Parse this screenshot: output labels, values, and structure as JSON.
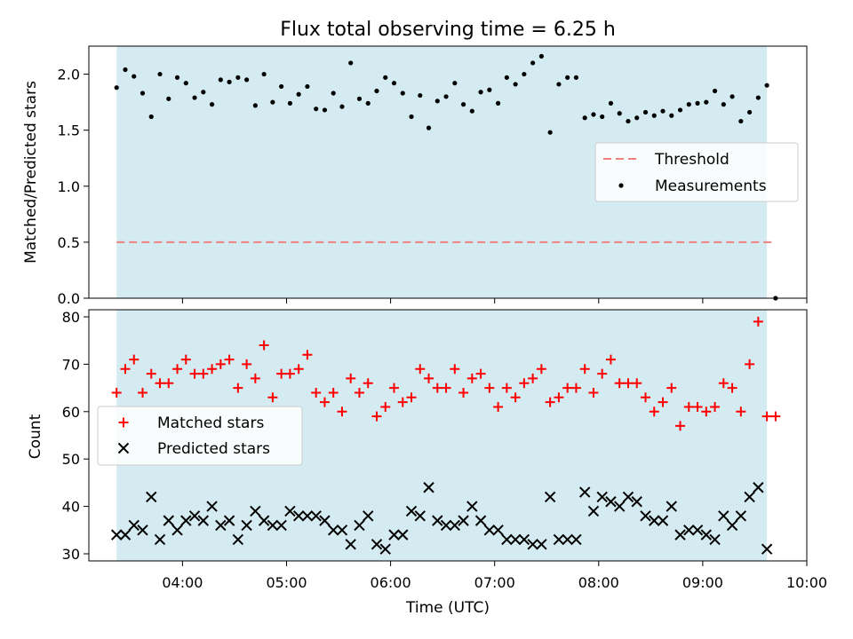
{
  "chart_data": {
    "title": "Flux total observing time = 6.25 h",
    "xlabel": "Time (UTC)",
    "x_ticks": [
      "04:00",
      "05:00",
      "06:00",
      "07:00",
      "08:00",
      "09:00",
      "10:00"
    ],
    "xlim": [
      "03:06",
      "10:00"
    ],
    "shaded_interval": [
      "03:22",
      "09:37"
    ],
    "shade_color": "#d4ebf2",
    "panels": [
      {
        "type": "scatter",
        "ylabel": "Matched/Predicted stars",
        "ylim": [
          0,
          2.25
        ],
        "yticks": [
          "0.0",
          "0.5",
          "1.0",
          "1.5",
          "2.0"
        ],
        "legend_position": "center-right",
        "threshold": {
          "name": "Threshold",
          "y": 0.5,
          "x_start": "03:22",
          "x_end": "09:42",
          "color": "#f08080"
        },
        "series": [
          {
            "name": "Measurements",
            "color": "#000000",
            "x": [
              "03:22",
              "03:27",
              "03:32",
              "03:37",
              "03:42",
              "03:47",
              "03:52",
              "03:57",
              "04:02",
              "04:07",
              "04:12",
              "04:17",
              "04:22",
              "04:27",
              "04:32",
              "04:37",
              "04:42",
              "04:47",
              "04:52",
              "04:57",
              "05:02",
              "05:07",
              "05:12",
              "05:17",
              "05:22",
              "05:27",
              "05:32",
              "05:37",
              "05:42",
              "05:47",
              "05:52",
              "05:57",
              "06:02",
              "06:07",
              "06:12",
              "06:17",
              "06:22",
              "06:27",
              "06:32",
              "06:37",
              "06:42",
              "06:47",
              "06:52",
              "06:57",
              "07:02",
              "07:07",
              "07:12",
              "07:17",
              "07:22",
              "07:27",
              "07:32",
              "07:37",
              "07:42",
              "07:47",
              "07:52",
              "07:57",
              "08:02",
              "08:07",
              "08:12",
              "08:17",
              "08:22",
              "08:27",
              "08:32",
              "08:37",
              "08:42",
              "08:47",
              "08:52",
              "08:57",
              "09:02",
              "09:07",
              "09:12",
              "09:17",
              "09:22",
              "09:27",
              "09:32",
              "09:37",
              "09:42"
            ],
            "y": [
              1.88,
              2.04,
              1.98,
              1.83,
              1.62,
              2.0,
              1.78,
              1.97,
              1.92,
              1.79,
              1.84,
              1.73,
              1.95,
              1.93,
              1.97,
              1.95,
              1.72,
              2.0,
              1.75,
              1.89,
              1.74,
              1.82,
              1.89,
              1.69,
              1.68,
              1.83,
              1.71,
              2.1,
              1.78,
              1.74,
              1.85,
              1.97,
              1.92,
              1.83,
              1.62,
              1.81,
              1.52,
              1.76,
              1.8,
              1.92,
              1.73,
              1.67,
              1.84,
              1.86,
              1.74,
              1.97,
              1.91,
              2.0,
              2.1,
              2.16,
              1.48,
              1.91,
              1.97,
              1.97,
              1.61,
              1.64,
              1.62,
              1.74,
              1.65,
              1.58,
              1.61,
              1.66,
              1.63,
              1.67,
              1.63,
              1.68,
              1.73,
              1.74,
              1.75,
              1.85,
              1.73,
              1.8,
              1.58,
              1.66,
              1.79,
              1.9,
              0.0
            ]
          }
        ]
      },
      {
        "type": "scatter",
        "ylabel": "Count",
        "ylim": [
          28.5,
          81.5
        ],
        "yticks": [
          "30",
          "40",
          "50",
          "60",
          "70",
          "80"
        ],
        "legend_position": "center-left",
        "series": [
          {
            "name": "Matched stars",
            "marker": "plus",
            "color": "#ff0000",
            "x": [
              "03:22",
              "03:27",
              "03:32",
              "03:37",
              "03:42",
              "03:47",
              "03:52",
              "03:57",
              "04:02",
              "04:07",
              "04:12",
              "04:17",
              "04:22",
              "04:27",
              "04:32",
              "04:37",
              "04:42",
              "04:47",
              "04:52",
              "04:57",
              "05:02",
              "05:07",
              "05:12",
              "05:17",
              "05:22",
              "05:27",
              "05:32",
              "05:37",
              "05:42",
              "05:47",
              "05:52",
              "05:57",
              "06:02",
              "06:07",
              "06:12",
              "06:17",
              "06:22",
              "06:27",
              "06:32",
              "06:37",
              "06:42",
              "06:47",
              "06:52",
              "06:57",
              "07:02",
              "07:07",
              "07:12",
              "07:17",
              "07:22",
              "07:27",
              "07:32",
              "07:37",
              "07:42",
              "07:47",
              "07:52",
              "07:57",
              "08:02",
              "08:07",
              "08:12",
              "08:17",
              "08:22",
              "08:27",
              "08:32",
              "08:37",
              "08:42",
              "08:47",
              "08:52",
              "08:57",
              "09:02",
              "09:07",
              "09:12",
              "09:17",
              "09:22",
              "09:27",
              "09:32",
              "09:37",
              "09:42"
            ],
            "y": [
              64,
              69,
              71,
              64,
              68,
              66,
              66,
              69,
              71,
              68,
              68,
              69,
              70,
              71,
              65,
              70,
              67,
              74,
              63,
              68,
              68,
              69,
              72,
              64,
              62,
              64,
              60,
              67,
              64,
              66,
              59,
              61,
              65,
              62,
              63,
              69,
              67,
              65,
              65,
              69,
              64,
              67,
              68,
              65,
              61,
              65,
              63,
              66,
              67,
              69,
              62,
              63,
              65,
              65,
              69,
              64,
              68,
              71,
              66,
              66,
              66,
              63,
              60,
              62,
              65,
              57,
              61,
              61,
              60,
              61,
              66,
              65,
              60,
              70,
              79,
              59,
              59
            ]
          },
          {
            "name": "Predicted stars",
            "marker": "x",
            "color": "#000000",
            "x": [
              "03:22",
              "03:27",
              "03:32",
              "03:37",
              "03:42",
              "03:47",
              "03:52",
              "03:57",
              "04:02",
              "04:07",
              "04:12",
              "04:17",
              "04:22",
              "04:27",
              "04:32",
              "04:37",
              "04:42",
              "04:47",
              "04:52",
              "04:57",
              "05:02",
              "05:07",
              "05:12",
              "05:17",
              "05:22",
              "05:27",
              "05:32",
              "05:37",
              "05:42",
              "05:47",
              "05:52",
              "05:57",
              "06:02",
              "06:07",
              "06:12",
              "06:17",
              "06:22",
              "06:27",
              "06:32",
              "06:37",
              "06:42",
              "06:47",
              "06:52",
              "06:57",
              "07:02",
              "07:07",
              "07:12",
              "07:17",
              "07:22",
              "07:27",
              "07:32",
              "07:37",
              "07:42",
              "07:47",
              "07:52",
              "07:57",
              "08:02",
              "08:07",
              "08:12",
              "08:17",
              "08:22",
              "08:27",
              "08:32",
              "08:37",
              "08:42",
              "08:47",
              "08:52",
              "08:57",
              "09:02",
              "09:07",
              "09:12",
              "09:17",
              "09:22",
              "09:27",
              "09:32",
              "09:37"
            ],
            "y": [
              34,
              34,
              36,
              35,
              42,
              33,
              37,
              35,
              37,
              38,
              37,
              40,
              36,
              37,
              33,
              36,
              39,
              37,
              36,
              36,
              39,
              38,
              38,
              38,
              37,
              35,
              35,
              32,
              36,
              38,
              32,
              31,
              34,
              34,
              39,
              38,
              44,
              37,
              36,
              36,
              37,
              40,
              37,
              35,
              35,
              33,
              33,
              33,
              32,
              32,
              42,
              33,
              33,
              33,
              43,
              39,
              42,
              41,
              40,
              42,
              41,
              38,
              37,
              37,
              40,
              34,
              35,
              35,
              34,
              33,
              38,
              36,
              38,
              42,
              44,
              31
            ]
          }
        ]
      }
    ]
  }
}
